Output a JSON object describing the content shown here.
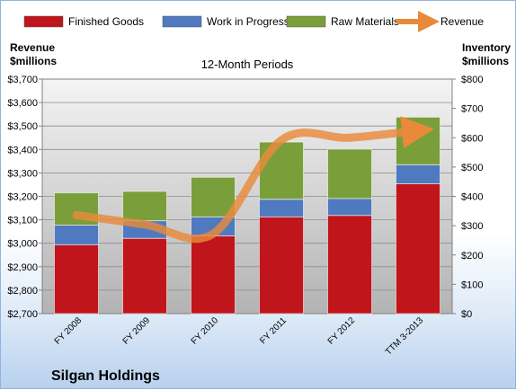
{
  "chart_data": {
    "type": "bar",
    "subtitle": "12-Month Periods",
    "company": "Silgan Holdings",
    "categories": [
      "FY 2008",
      "FY 2009",
      "FY 2010",
      "FY 2011",
      "FY 2012",
      "TTM 3-2013"
    ],
    "series": [
      {
        "name": "Finished Goods",
        "axis": "right",
        "color": "#c0151b",
        "values": [
          235,
          257,
          265,
          330,
          335,
          443
        ]
      },
      {
        "name": "Work in Progress",
        "axis": "right",
        "color": "#4f7ac0",
        "values": [
          67,
          60,
          65,
          60,
          58,
          65
        ]
      },
      {
        "name": "Raw Materials",
        "axis": "right",
        "color": "#7a9e3a",
        "values": [
          110,
          100,
          135,
          195,
          168,
          162
        ]
      },
      {
        "name": "Revenue",
        "axis": "left",
        "type": "line",
        "color": "#e98a3a",
        "values": [
          3120,
          3080,
          3040,
          3440,
          3450,
          3480
        ]
      }
    ],
    "left_axis": {
      "title_line1": "Revenue",
      "title_line2": "$millions",
      "ylim": [
        2700,
        3700
      ],
      "ticks": [
        2700,
        2800,
        2900,
        3000,
        3100,
        3200,
        3300,
        3400,
        3500,
        3600,
        3700
      ],
      "tick_labels": [
        "$2,700",
        "$2,800",
        "$2,900",
        "$3,000",
        "$3,100",
        "$3,200",
        "$3,300",
        "$3,400",
        "$3,500",
        "$3,600",
        "$3,700"
      ]
    },
    "right_axis": {
      "title_line1": "Inventory",
      "title_line2": "$millions",
      "ylim": [
        0,
        800
      ],
      "ticks": [
        0,
        100,
        200,
        300,
        400,
        500,
        600,
        700,
        800
      ],
      "tick_labels": [
        "$0",
        "$100",
        "$200",
        "$300",
        "$400",
        "$500",
        "$600",
        "$700",
        "$800"
      ]
    },
    "legend": {
      "position": "top",
      "items": [
        {
          "label": "Finished Goods",
          "color": "#c0151b",
          "kind": "box"
        },
        {
          "label": "Work in Progress",
          "color": "#4f7ac0",
          "kind": "box"
        },
        {
          "label": "Raw Materials",
          "color": "#7a9e3a",
          "kind": "box"
        },
        {
          "label": "Revenue",
          "color": "#e98a3a",
          "kind": "arrow"
        }
      ]
    },
    "grid": true,
    "plot_background": "#c9c9c9"
  }
}
